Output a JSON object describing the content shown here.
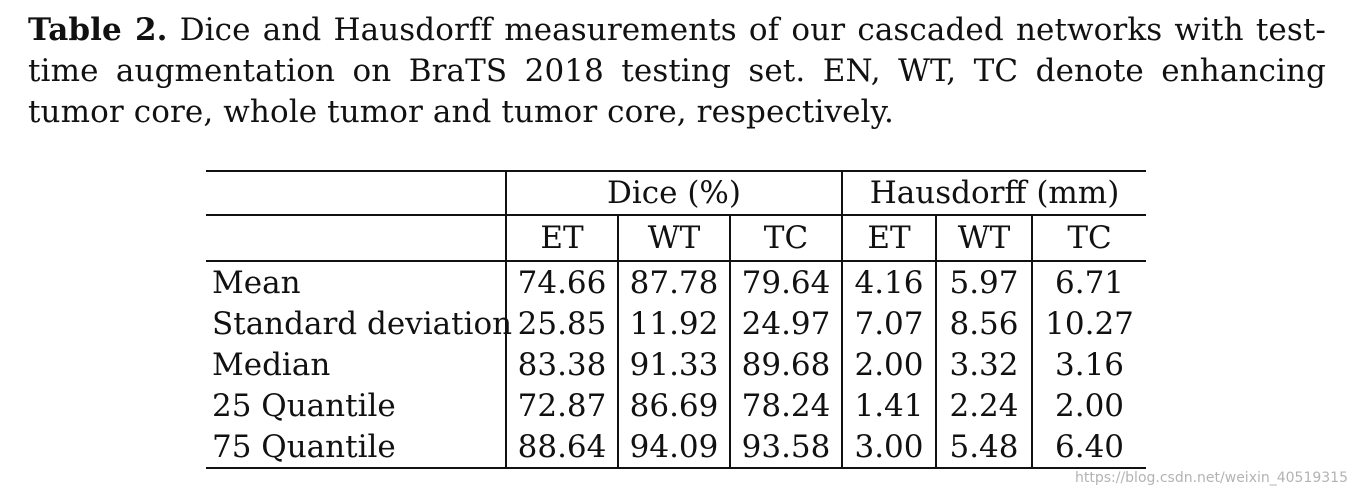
{
  "caption": {
    "label": "Table 2.",
    "text": " Dice and Hausdorff measurements of our cascaded networks with test-time augmentation on BraTS 2018 testing set. EN, WT, TC denote enhancing tumor core, whole tumor and tumor core, respectively."
  },
  "table": {
    "group_headers": [
      "Dice (%)",
      "Hausdorff (mm)"
    ],
    "sub_headers": [
      "ET",
      "WT",
      "TC",
      "ET",
      "WT",
      "TC"
    ],
    "rows": [
      {
        "label": "Mean",
        "values": [
          "74.66",
          "87.78",
          "79.64",
          "4.16",
          "5.97",
          "6.71"
        ]
      },
      {
        "label": "Standard deviation",
        "values": [
          "25.85",
          "11.92",
          "24.97",
          "7.07",
          "8.56",
          "10.27"
        ]
      },
      {
        "label": "Median",
        "values": [
          "83.38",
          "91.33",
          "89.68",
          "2.00",
          "3.32",
          "3.16"
        ]
      },
      {
        "label": "25 Quantile",
        "values": [
          "72.87",
          "86.69",
          "78.24",
          "1.41",
          "2.24",
          "2.00"
        ]
      },
      {
        "label": "75 Quantile",
        "values": [
          "88.64",
          "94.09",
          "93.58",
          "3.00",
          "5.48",
          "6.40"
        ]
      }
    ]
  },
  "watermark": "https://blog.csdn.net/weixin_40519315"
}
